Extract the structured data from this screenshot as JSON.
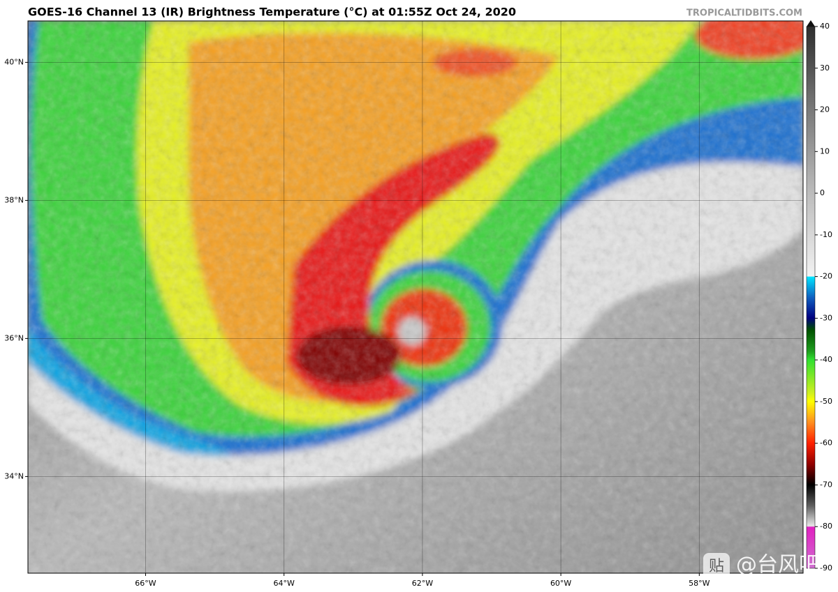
{
  "header": {
    "title": "GOES-16 Channel 13 (IR) Brightness Temperature (°C) at 01:55Z Oct 24, 2020",
    "source": "TROPICALTIDBITS.COM"
  },
  "map": {
    "lon_range": [
      -67.7,
      -56.5
    ],
    "lat_range": [
      32.6,
      40.6
    ],
    "lon_ticks": [
      {
        "value": -66,
        "label": "66°W"
      },
      {
        "value": -64,
        "label": "64°W"
      },
      {
        "value": -62,
        "label": "62°W"
      },
      {
        "value": -60,
        "label": "60°W"
      },
      {
        "value": -58,
        "label": "58°W"
      }
    ],
    "lat_ticks": [
      {
        "value": 40,
        "label": "40°N"
      },
      {
        "value": 38,
        "label": "38°N"
      },
      {
        "value": 36,
        "label": "36°N"
      },
      {
        "value": 34,
        "label": "34°N"
      }
    ]
  },
  "colorbar": {
    "range": [
      -90,
      40
    ],
    "ticks": [
      40,
      30,
      20,
      10,
      0,
      -10,
      -20,
      -30,
      -40,
      -50,
      -60,
      -70,
      -80,
      -90
    ]
  },
  "watermark": {
    "icon": "贴",
    "text": "@台风吧"
  }
}
